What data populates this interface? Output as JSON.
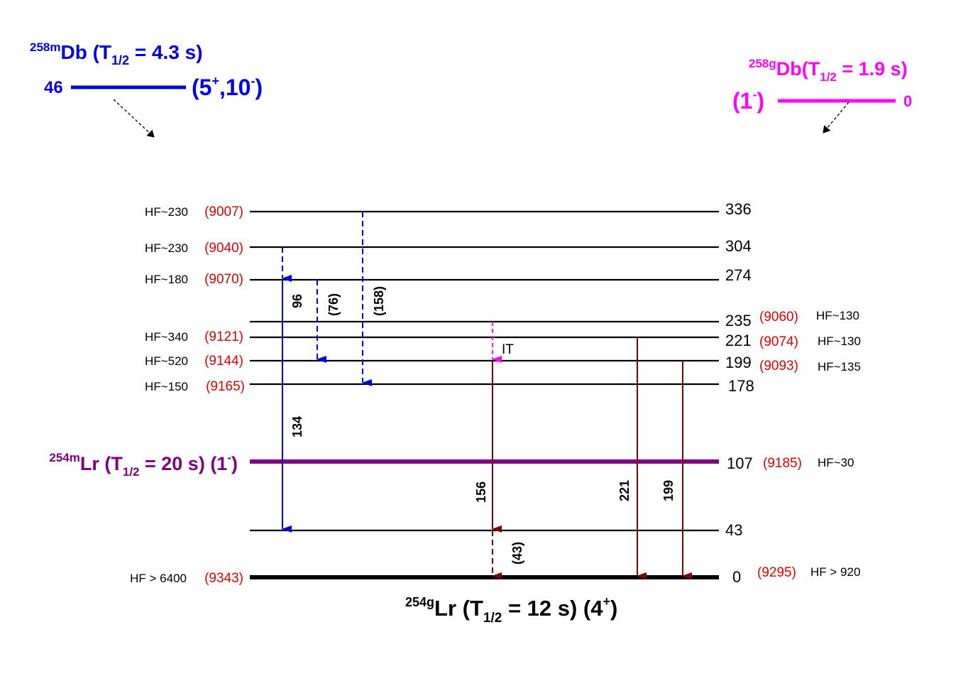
{
  "parents": {
    "db_m": {
      "mass": "258m",
      "element": "Db",
      "halflife_pre": " (T",
      "halflife_sub": "1/2",
      "halflife_post": " = 4.3 s)",
      "energy": "46",
      "spin_a": "(5",
      "spin_a_sup": "+",
      "spin_b": ",10",
      "spin_b_sup": "-",
      "spin_c": ")",
      "color": "#0000e6"
    },
    "db_g": {
      "mass": "258g",
      "element": "Db",
      "halflife_pre": "(T",
      "halflife_sub": "1/2",
      "halflife_post": " = 1.9 s)",
      "energy": "0",
      "spin_a": "(1",
      "spin_a_sup": "-",
      "spin_c": ")",
      "color": "#ff00ff"
    }
  },
  "levels_left": [
    {
      "hf": "HF~230",
      "qa": "(9007)",
      "energy": "336"
    },
    {
      "hf": "HF~230",
      "qa": "(9040)",
      "energy": "304"
    },
    {
      "hf": "HF~180",
      "qa": "(9070)",
      "energy": "274"
    },
    {
      "hf": "",
      "qa": "",
      "energy": "235",
      "qa_right": "(9060)",
      "hf_right": "HF~130"
    },
    {
      "hf": "HF~340",
      "qa": "(9121)",
      "energy": "221",
      "qa_right": "(9074)",
      "hf_right": "HF~130"
    },
    {
      "hf": "HF~520",
      "qa": "(9144)",
      "energy": "199",
      "qa_right": "(9093)",
      "hf_right": "HF~135"
    },
    {
      "hf": "HF~150",
      "qa": "(9165)",
      "energy": "178"
    }
  ],
  "isomer": {
    "mass": "254m",
    "element": "Lr",
    "halflife_pre": " (T",
    "halflife_sub": "1/2",
    "halflife_post": " = 20 s) (1",
    "spin_sup": "-",
    "spin_post": ")",
    "energy": "107",
    "qa_right": "(9185)",
    "hf_right": "HF~30",
    "color": "#800080"
  },
  "level_43": {
    "energy": "43"
  },
  "ground": {
    "hf": "HF > 6400",
    "qa": "(9343)",
    "energy": "0",
    "qa_right": "(9295)",
    "hf_right": "HF > 920",
    "mass": "254g",
    "element": "Lr",
    "halflife_pre": " (T",
    "halflife_sub": "1/2",
    "halflife_post": " = 12 s) (4",
    "spin_sup": "+",
    "spin_post": ")"
  },
  "gammas": {
    "g96": "96",
    "g76": "(76)",
    "g158": "(158)",
    "g134": "134",
    "g156": "156",
    "g43": "(43)",
    "g221": "221",
    "g199": "199",
    "it": "IT"
  },
  "colors": {
    "red": "#e00000",
    "blue": "#0000e6",
    "darkred": "#800000",
    "magenta": "#ff00ff",
    "purple": "#800080"
  }
}
